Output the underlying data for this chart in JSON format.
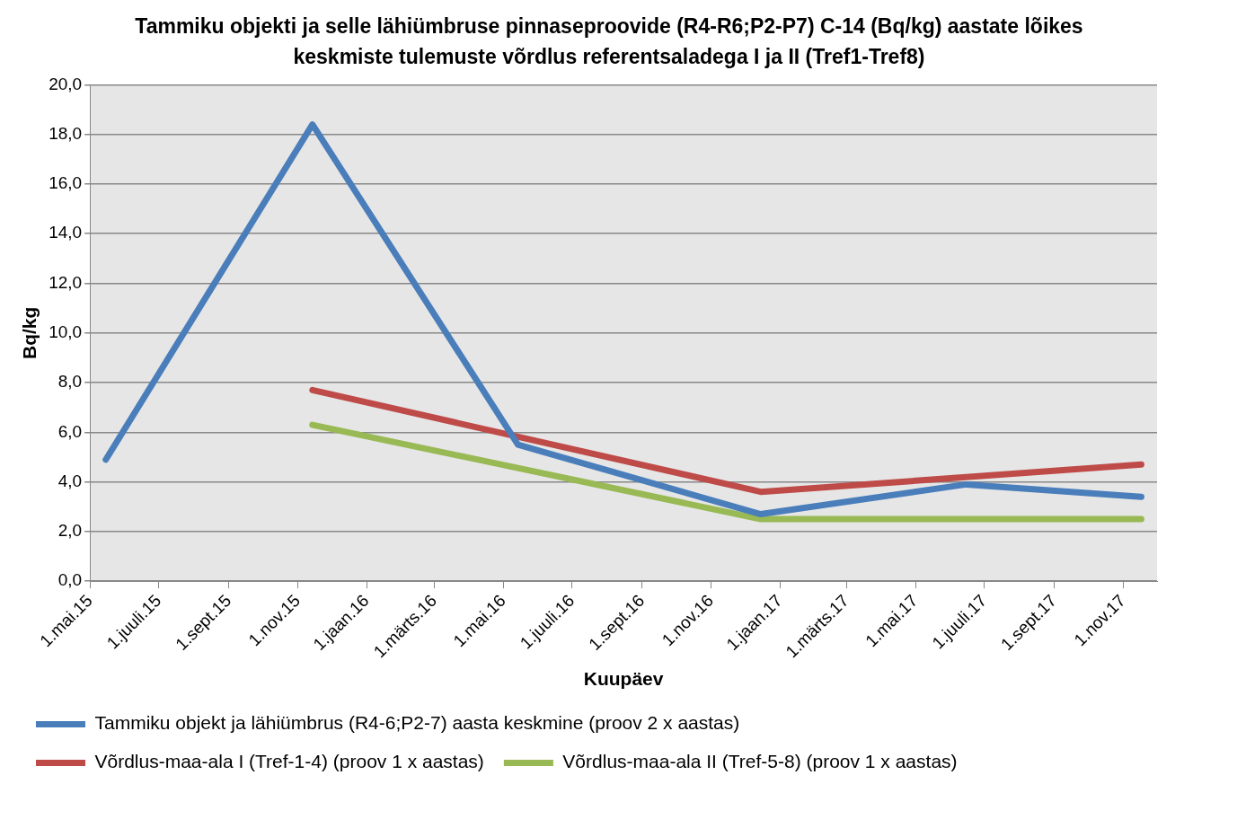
{
  "chart_data": {
    "type": "line",
    "title": "Tammiku objekti ja selle lähiümbruse pinnaseproovide (R4-R6;P2-P7) C-14 (Bq/kg) aastate lõikes keskmiste tulemuste võrdlus referentsaladega I ja II (Tref1-Tref8)",
    "xlabel": "Kuupäev",
    "ylabel": "Bq/kg",
    "series": [
      {
        "name": "Tammiku objekt ja lähiümbrus (R4-6;P2-7) aasta keskmine (proov 2 x aastas)",
        "color": "#4a7ebb",
        "x": [
          "2015-05-15",
          "2015-11-14",
          "2016-05-14",
          "2016-12-15",
          "2017-06-15",
          "2017-11-17"
        ],
        "values": [
          4.9,
          18.4,
          5.5,
          2.7,
          3.9,
          3.4
        ]
      },
      {
        "name": "Võrdlus-maa-ala I (Tref-1-4) (proov 1 x aastas)",
        "color": "#be4b48",
        "x": [
          "2015-11-14",
          "2016-12-15",
          "2017-11-17"
        ],
        "values": [
          7.7,
          3.6,
          4.7
        ]
      },
      {
        "name": "Võrdlus-maa-ala II (Tref-5-8) (proov 1 x aastas)",
        "color": "#98b954",
        "x": [
          "2015-11-14",
          "2016-12-15",
          "2017-11-17"
        ],
        "values": [
          6.3,
          2.5,
          2.5
        ]
      }
    ],
    "xlim": [
      "2015-05-01",
      "2017-12-01"
    ],
    "xticks": [
      {
        "value": "2015-05-01",
        "label": "1.mai.15"
      },
      {
        "value": "2015-07-01",
        "label": "1.juuli.15"
      },
      {
        "value": "2015-09-01",
        "label": "1.sept.15"
      },
      {
        "value": "2015-11-01",
        "label": "1.nov.15"
      },
      {
        "value": "2016-01-01",
        "label": "1.jaan.16"
      },
      {
        "value": "2016-03-01",
        "label": "1.märts.16"
      },
      {
        "value": "2016-05-01",
        "label": "1.mai.16"
      },
      {
        "value": "2016-07-01",
        "label": "1.juuli.16"
      },
      {
        "value": "2016-09-01",
        "label": "1.sept.16"
      },
      {
        "value": "2016-11-01",
        "label": "1.nov.16"
      },
      {
        "value": "2017-01-01",
        "label": "1.jaan.17"
      },
      {
        "value": "2017-03-01",
        "label": "1.märts.17"
      },
      {
        "value": "2017-05-01",
        "label": "1.mai.17"
      },
      {
        "value": "2017-07-01",
        "label": "1.juuli.17"
      },
      {
        "value": "2017-09-01",
        "label": "1.sept.17"
      },
      {
        "value": "2017-11-01",
        "label": "1.nov.17"
      }
    ],
    "ylim": [
      0,
      20
    ],
    "yticks": [
      {
        "value": 0,
        "label": "0,0"
      },
      {
        "value": 2,
        "label": "2,0"
      },
      {
        "value": 4,
        "label": "4,0"
      },
      {
        "value": 6,
        "label": "6,0"
      },
      {
        "value": 8,
        "label": "8,0"
      },
      {
        "value": 10,
        "label": "10,0"
      },
      {
        "value": 12,
        "label": "12,0"
      },
      {
        "value": 14,
        "label": "14,0"
      },
      {
        "value": 16,
        "label": "16,0"
      },
      {
        "value": 18,
        "label": "18,0"
      },
      {
        "value": 20,
        "label": "20,0"
      }
    ],
    "grid": "y",
    "legend": "bottom",
    "marker": "none",
    "line_style": "solid"
  }
}
